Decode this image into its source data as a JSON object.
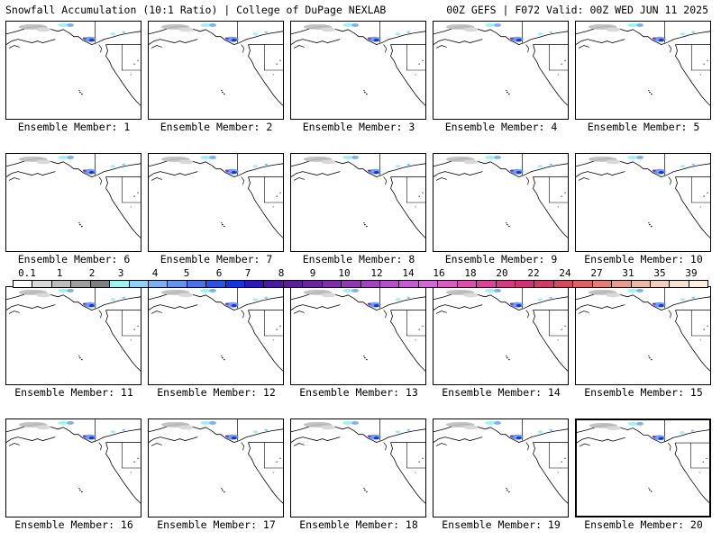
{
  "header": {
    "left": "Snowfall Accumulation (10:1 Ratio) | College of DuPage NEXLAB",
    "right": "00Z GEFS | F072 Valid: 00Z WED JUN 11 2025"
  },
  "panels": [
    {
      "label": "Ensemble Member: 1"
    },
    {
      "label": "Ensemble Member: 2"
    },
    {
      "label": "Ensemble Member: 3"
    },
    {
      "label": "Ensemble Member: 4"
    },
    {
      "label": "Ensemble Member: 5"
    },
    {
      "label": "Ensemble Member: 6"
    },
    {
      "label": "Ensemble Member: 7"
    },
    {
      "label": "Ensemble Member: 8"
    },
    {
      "label": "Ensemble Member: 9"
    },
    {
      "label": "Ensemble Member: 10"
    },
    {
      "label": "Ensemble Member: 11"
    },
    {
      "label": "Ensemble Member: 12"
    },
    {
      "label": "Ensemble Member: 13"
    },
    {
      "label": "Ensemble Member: 14"
    },
    {
      "label": "Ensemble Member: 15"
    },
    {
      "label": "Ensemble Member: 16"
    },
    {
      "label": "Ensemble Member: 17"
    },
    {
      "label": "Ensemble Member: 18"
    },
    {
      "label": "Ensemble Member: 19"
    },
    {
      "label": "Ensemble Member: 20",
      "highlighted": true
    }
  ],
  "colorbar": {
    "labels": [
      "0.1",
      "1",
      "2",
      "3",
      "4",
      "5",
      "6",
      "7",
      "8",
      "9",
      "10",
      "12",
      "14",
      "16",
      "18",
      "20",
      "22",
      "24",
      "27",
      "31",
      "35",
      "39"
    ],
    "colors": [
      "#ffffff",
      "#d9d9d9",
      "#bdbdbd",
      "#9e9e9e",
      "#7f7f7f",
      "#9ff2f2",
      "#8fd1f5",
      "#79b2ee",
      "#6393ea",
      "#4a72e6",
      "#2b52e0",
      "#1534dc",
      "#3018b8",
      "#4a1aa0",
      "#5b1e98",
      "#6c249c",
      "#7e2ea6",
      "#9038b0",
      "#a244bc",
      "#b450c6",
      "#c25ccf",
      "#cf68d6",
      "#d65cc0",
      "#d850ac",
      "#d84498",
      "#d43a86",
      "#d03278",
      "#d03a6a",
      "#d44a62",
      "#dc6266",
      "#e27e76",
      "#e69c8c",
      "#ebb8a4",
      "#f0d0bc",
      "#f6e2d0",
      "#fbf0e2"
    ]
  }
}
